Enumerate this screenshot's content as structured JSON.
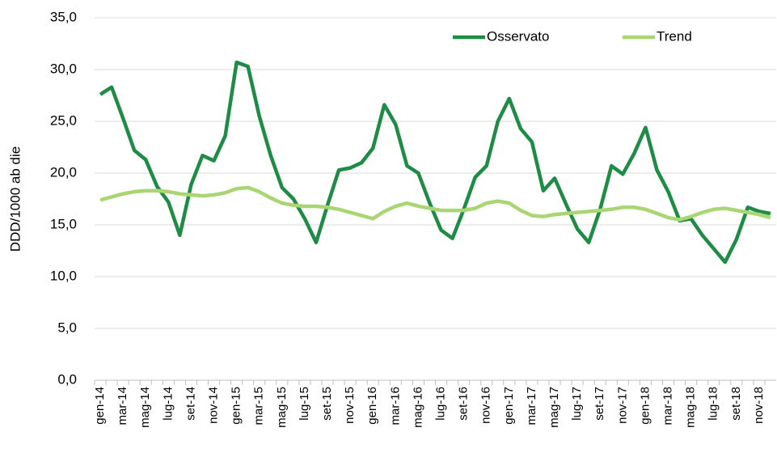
{
  "chart_data": {
    "type": "line",
    "y_label": "DDD/1000 ab die",
    "categories": [
      "gen-14",
      null,
      "mar-14",
      null,
      "mag-14",
      null,
      "lug-14",
      null,
      "set-14",
      null,
      "nov-14",
      null,
      "gen-15",
      null,
      "mar-15",
      null,
      "mag-15",
      null,
      "lug-15",
      null,
      "set-15",
      null,
      "nov-15",
      null,
      "gen-16",
      null,
      "mar-16",
      null,
      "mag-16",
      null,
      "lug-16",
      null,
      "set-16",
      null,
      "nov-16",
      null,
      "gen-17",
      null,
      "mar-17",
      null,
      "mag-17",
      null,
      "lug-17",
      null,
      "set-17",
      null,
      "nov-17",
      null,
      "gen-18",
      null,
      "mar-18",
      null,
      "mag-18",
      null,
      "lug-18",
      null,
      "set-18",
      null,
      "nov-18",
      null
    ],
    "series": [
      {
        "name": "Osservato",
        "color": "#1e8c45",
        "width": 4.5,
        "values": [
          27.6,
          28.3,
          25.3,
          22.2,
          21.3,
          18.7,
          17.2,
          14.0,
          18.9,
          21.7,
          21.2,
          23.6,
          30.7,
          30.3,
          25.5,
          21.7,
          18.6,
          17.5,
          15.6,
          13.3,
          16.9,
          20.3,
          20.5,
          21.0,
          22.4,
          26.6,
          24.7,
          20.7,
          20.0,
          17.1,
          14.5,
          13.7,
          16.5,
          19.6,
          20.7,
          25.0,
          27.2,
          24.3,
          23.0,
          18.3,
          19.5,
          17.0,
          14.6,
          13.3,
          16.5,
          20.7,
          19.9,
          21.9,
          24.4,
          20.3,
          18.2,
          15.4,
          15.6,
          14.0,
          12.7,
          11.4,
          13.6,
          16.7,
          16.3,
          16.1
        ]
      },
      {
        "name": "Trend",
        "color": "#a9d672",
        "width": 4.5,
        "values": [
          17.4,
          17.7,
          18.0,
          18.2,
          18.3,
          18.3,
          18.2,
          18.0,
          17.9,
          17.8,
          17.9,
          18.1,
          18.5,
          18.6,
          18.2,
          17.6,
          17.1,
          16.9,
          16.8,
          16.8,
          16.7,
          16.5,
          16.2,
          15.9,
          15.6,
          16.3,
          16.8,
          17.1,
          16.8,
          16.6,
          16.4,
          16.4,
          16.4,
          16.6,
          17.1,
          17.3,
          17.1,
          16.4,
          15.9,
          15.8,
          16.0,
          16.1,
          16.2,
          16.3,
          16.4,
          16.5,
          16.7,
          16.7,
          16.5,
          16.1,
          15.7,
          15.5,
          15.8,
          16.2,
          16.5,
          16.6,
          16.4,
          16.2,
          16.0,
          15.7
        ]
      }
    ],
    "ylim": [
      0,
      35
    ],
    "yticks": [
      {
        "value": 0,
        "label": "0,0"
      },
      {
        "value": 5,
        "label": "5,0"
      },
      {
        "value": 10,
        "label": "10,0"
      },
      {
        "value": 15,
        "label": "15,0"
      },
      {
        "value": 20,
        "label": "20,0"
      },
      {
        "value": 25,
        "label": "25,0"
      },
      {
        "value": 30,
        "label": "30,0"
      },
      {
        "value": 35,
        "label": "35,0"
      }
    ],
    "grid": true,
    "legend": "top-right"
  }
}
